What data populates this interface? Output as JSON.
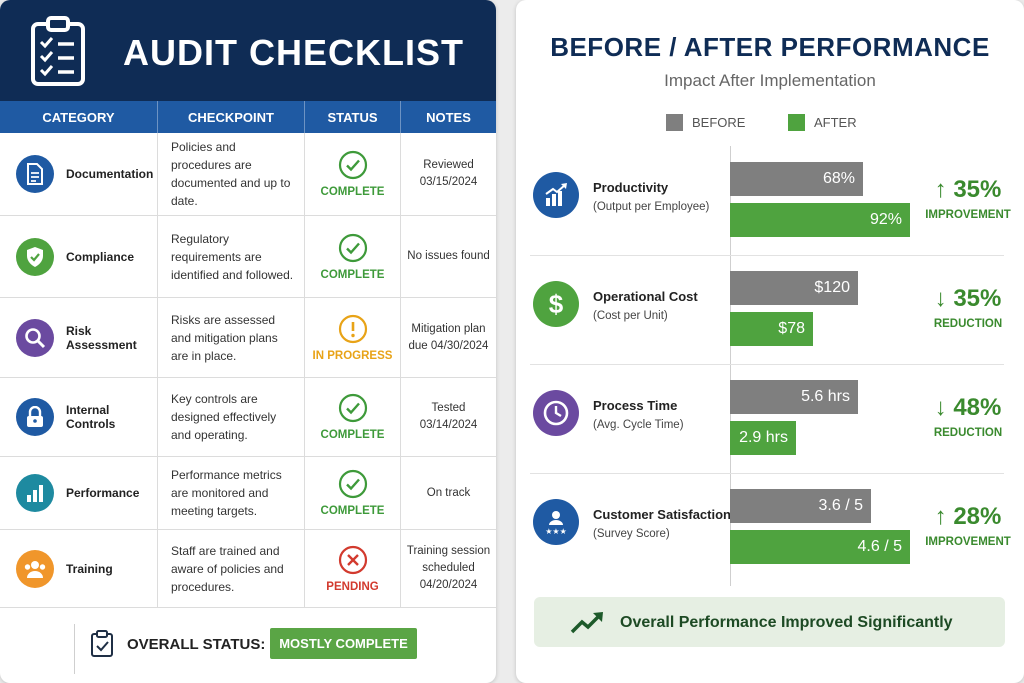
{
  "checklist": {
    "title": "AUDIT CHECKLIST",
    "columns": [
      "CATEGORY",
      "CHECKPOINT",
      "STATUS",
      "NOTES"
    ],
    "rows": [
      {
        "category": "Documentation",
        "icon": "document-icon",
        "color": "#1f5aa3",
        "checkpoint": "Policies and procedures are documented and up to date.",
        "status": "COMPLETE",
        "status_icon": "check-circle-icon",
        "status_color": "#3e9a3a",
        "notes": "Reviewed 03/15/2024"
      },
      {
        "category": "Compliance",
        "icon": "shield-check-icon",
        "color": "#4fa33f",
        "checkpoint": "Regulatory requirements are identified and followed.",
        "status": "COMPLETE",
        "status_icon": "check-circle-icon",
        "status_color": "#3e9a3a",
        "notes": "No issues found"
      },
      {
        "category": "Risk Assessment",
        "icon": "magnifier-icon",
        "color": "#6b4aa0",
        "checkpoint": "Risks are assessed and mitigation plans are in place.",
        "status": "IN PROGRESS",
        "status_icon": "exclamation-circle-icon",
        "status_color": "#e8a317",
        "notes": "Mitigation plan due 04/30/2024"
      },
      {
        "category": "Internal Controls",
        "icon": "lock-icon",
        "color": "#1f5aa3",
        "checkpoint": "Key controls are designed effectively and operating.",
        "status": "COMPLETE",
        "status_icon": "check-circle-icon",
        "status_color": "#3e9a3a",
        "notes": "Tested 03/14/2024"
      },
      {
        "category": "Performance",
        "icon": "bar-chart-icon",
        "color": "#1e8aa0",
        "checkpoint": "Performance metrics are monitored and meeting targets.",
        "status": "COMPLETE",
        "status_icon": "check-circle-icon",
        "status_color": "#3e9a3a",
        "notes": "On track"
      },
      {
        "category": "Training",
        "icon": "people-icon",
        "color": "#f0962b",
        "checkpoint": "Staff are trained and aware of policies and procedures.",
        "status": "PENDING",
        "status_icon": "x-circle-icon",
        "status_color": "#d23a2e",
        "notes": "Training session scheduled 04/20/2024"
      }
    ],
    "overall_label": "OVERALL STATUS:",
    "overall_value": "MOSTLY COMPLETE"
  },
  "chart_data": {
    "type": "bar",
    "title": "BEFORE / AFTER PERFORMANCE",
    "subtitle": "Impact After Implementation",
    "legend": [
      "BEFORE",
      "AFTER"
    ],
    "legend_placement": "top",
    "colors": {
      "before": "#7f7f7f",
      "after": "#4fa33f"
    },
    "categories": [
      {
        "name": "Productivity",
        "sub": "(Output per Employee)",
        "icon": "trend-chart-icon",
        "color": "#1f5aa3",
        "before": 68,
        "after": 92,
        "before_label": "68%",
        "after_label": "92%",
        "change": "35%",
        "direction": "up",
        "change_label": "IMPROVEMENT"
      },
      {
        "name": "Operational Cost",
        "sub": "(Cost per Unit)",
        "icon": "dollar-icon",
        "color": "#4fa33f",
        "before": 120,
        "after": 78,
        "before_label": "$120",
        "after_label": "$78",
        "change": "35%",
        "direction": "down",
        "change_label": "REDUCTION"
      },
      {
        "name": "Process Time",
        "sub": "(Avg. Cycle Time)",
        "icon": "clock-icon",
        "color": "#6b4aa0",
        "before": 5.6,
        "after": 2.9,
        "before_label": "5.6 hrs",
        "after_label": "2.9 hrs",
        "change": "48%",
        "direction": "down",
        "change_label": "REDUCTION"
      },
      {
        "name": "Customer Satisfaction",
        "sub": "(Survey Score)",
        "icon": "customer-stars-icon",
        "color": "#1f5aa3",
        "before": 3.6,
        "after": 4.6,
        "before_label": "3.6 / 5",
        "after_label": "4.6 / 5",
        "change": "28%",
        "direction": "up",
        "change_label": "IMPROVEMENT"
      }
    ],
    "summary": "Overall Performance Improved Significantly"
  }
}
